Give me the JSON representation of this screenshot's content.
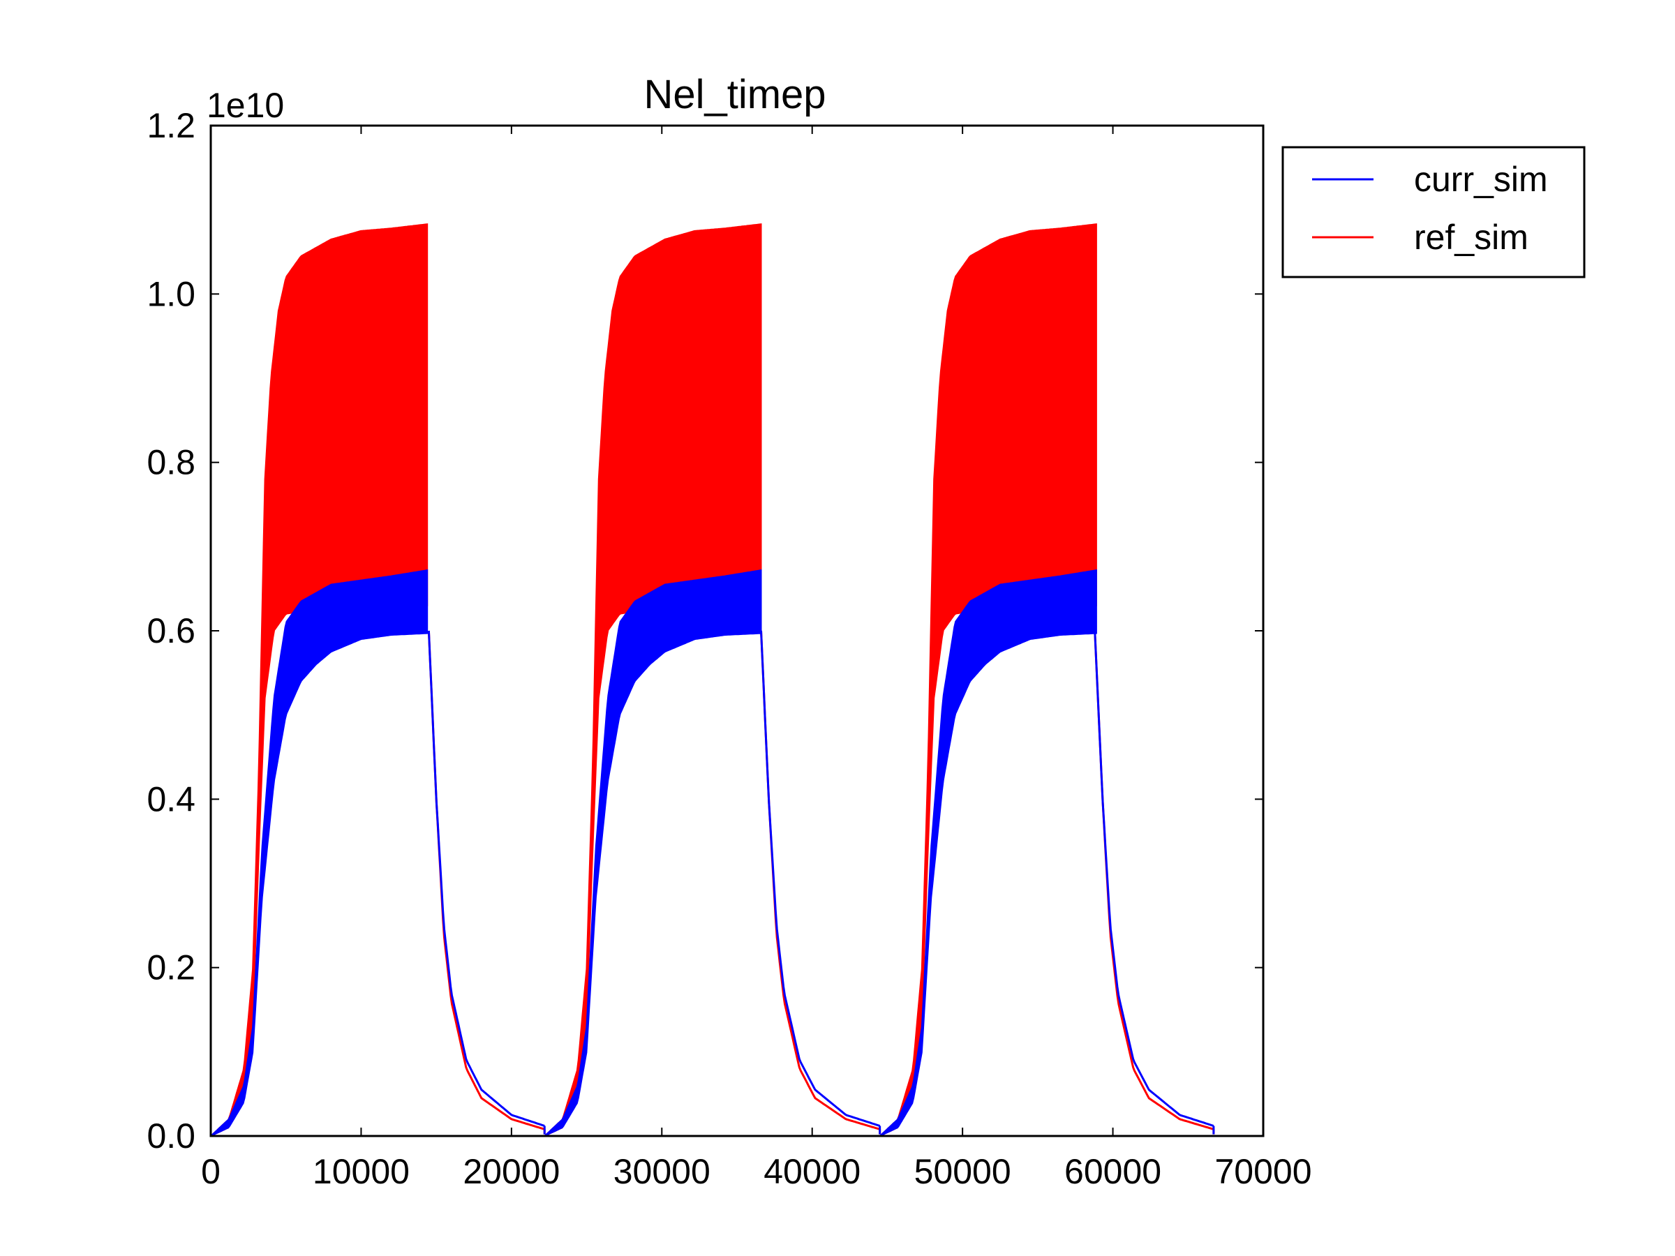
{
  "chart_data": {
    "type": "line",
    "title": "Nel_timep",
    "xlabel": "",
    "ylabel": "",
    "xlim": [
      0,
      70000
    ],
    "ylim": [
      0,
      1.2
    ],
    "y_offset_label": "1e10",
    "x_ticks": [
      {
        "value": 0,
        "label": "0"
      },
      {
        "value": 10000,
        "label": "10000"
      },
      {
        "value": 20000,
        "label": "20000"
      },
      {
        "value": 30000,
        "label": "30000"
      },
      {
        "value": 40000,
        "label": "40000"
      },
      {
        "value": 50000,
        "label": "50000"
      },
      {
        "value": 60000,
        "label": "60000"
      },
      {
        "value": 70000,
        "label": "70000"
      }
    ],
    "y_ticks": [
      {
        "value": 0.0,
        "label": "0.0"
      },
      {
        "value": 0.2,
        "label": "0.2"
      },
      {
        "value": 0.4,
        "label": "0.4"
      },
      {
        "value": 0.6,
        "label": "0.6"
      },
      {
        "value": 0.8,
        "label": "0.8"
      },
      {
        "value": 1.0,
        "label": "1.0"
      },
      {
        "value": 1.2,
        "label": "1.2"
      }
    ],
    "grid": false,
    "legend_position": "outside-top-right",
    "cycles": [
      {
        "start": 0,
        "rise": 3200,
        "end": 14500,
        "decay_end": 22200
      },
      {
        "start": 22200,
        "rise": 24300,
        "end": 36600,
        "decay_end": 44500
      },
      {
        "start": 44500,
        "rise": 46400,
        "end": 58800,
        "decay_end": 66700
      }
    ],
    "series": [
      {
        "name": "curr_sim",
        "color": "#0000ff",
        "upper_envelope": [
          [
            0,
            0.0
          ],
          [
            1200,
            0.02
          ],
          [
            2200,
            0.06
          ],
          [
            2800,
            0.13
          ],
          [
            3400,
            0.34
          ],
          [
            4200,
            0.52
          ],
          [
            5000,
            0.61
          ],
          [
            6000,
            0.635
          ],
          [
            8000,
            0.655
          ],
          [
            10000,
            0.66
          ],
          [
            12000,
            0.665
          ],
          [
            14400,
            0.672
          ]
        ],
        "lower_envelope": [
          [
            0,
            0.0
          ],
          [
            1200,
            0.01
          ],
          [
            2200,
            0.04
          ],
          [
            2800,
            0.1
          ],
          [
            3400,
            0.28
          ],
          [
            4200,
            0.42
          ],
          [
            5000,
            0.5
          ],
          [
            6000,
            0.54
          ],
          [
            7000,
            0.56
          ],
          [
            8000,
            0.575
          ],
          [
            10000,
            0.59
          ],
          [
            12000,
            0.595
          ],
          [
            14400,
            0.597
          ]
        ],
        "decay": [
          [
            14500,
            0.6
          ],
          [
            15000,
            0.4
          ],
          [
            15500,
            0.25
          ],
          [
            16000,
            0.17
          ],
          [
            17000,
            0.09
          ],
          [
            18000,
            0.055
          ],
          [
            20000,
            0.025
          ],
          [
            22200,
            0.012
          ]
        ]
      },
      {
        "name": "ref_sim",
        "color": "#ff0000",
        "upper_envelope": [
          [
            0,
            0.0
          ],
          [
            1200,
            0.02
          ],
          [
            2200,
            0.08
          ],
          [
            2800,
            0.2
          ],
          [
            3200,
            0.44
          ],
          [
            3600,
            0.78
          ],
          [
            4000,
            0.9
          ],
          [
            4500,
            0.98
          ],
          [
            5000,
            1.02
          ],
          [
            6000,
            1.045
          ],
          [
            8000,
            1.065
          ],
          [
            10000,
            1.075
          ],
          [
            12000,
            1.078
          ],
          [
            14400,
            1.083
          ]
        ],
        "lower_envelope": [
          [
            0,
            0.0
          ],
          [
            1200,
            0.01
          ],
          [
            2200,
            0.05
          ],
          [
            2800,
            0.14
          ],
          [
            3200,
            0.34
          ],
          [
            3600,
            0.52
          ],
          [
            4200,
            0.6
          ],
          [
            5000,
            0.62
          ],
          [
            8000,
            0.63
          ],
          [
            14400,
            0.63
          ]
        ],
        "decay": [
          [
            14500,
            0.6
          ],
          [
            15000,
            0.4
          ],
          [
            15500,
            0.24
          ],
          [
            16000,
            0.16
          ],
          [
            17000,
            0.08
          ],
          [
            18000,
            0.045
          ],
          [
            20000,
            0.02
          ],
          [
            22200,
            0.008
          ]
        ]
      }
    ]
  }
}
